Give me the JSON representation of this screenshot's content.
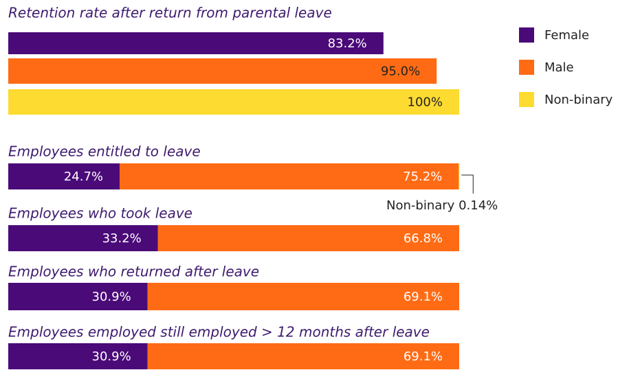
{
  "chart_data": [
    {
      "type": "bar",
      "title": "Retention rate after return from parental leave",
      "categories": [
        null
      ],
      "xlim": [
        0,
        100
      ],
      "legend": "right",
      "series": [
        {
          "name": "Female",
          "color": "#4a0a78",
          "label_color": "#ffffff",
          "values": [
            83.2
          ],
          "value_labels": [
            "83.2%"
          ]
        },
        {
          "name": "Male",
          "color": "#ff6b14",
          "label_color": "#222222",
          "values": [
            95.0
          ],
          "value_labels": [
            "95.0%"
          ]
        },
        {
          "name": "Non-binary",
          "color": "#fddb30",
          "label_color": "#222222",
          "values": [
            100
          ],
          "value_labels": [
            "100%"
          ]
        }
      ]
    },
    {
      "type": "stacked_bar",
      "title": "Employees entitled to leave",
      "categories": [
        null
      ],
      "xlim": [
        0,
        100
      ],
      "series": [
        {
          "name": "Female",
          "color": "#4a0a78",
          "label_color": "#ffffff",
          "values": [
            24.7
          ],
          "value_labels": [
            "24.7%"
          ]
        },
        {
          "name": "Male",
          "color": "#ff6b14",
          "label_color": "#ffffff",
          "values": [
            75.2
          ],
          "value_labels": [
            "75.2%"
          ]
        },
        {
          "name": "Non-binary",
          "color": "#fddb30",
          "label_color": "#222222",
          "values": [
            0.14
          ],
          "value_labels": [
            "0.14%"
          ],
          "callout": true
        }
      ]
    },
    {
      "type": "stacked_bar",
      "title": "Employees who took leave",
      "categories": [
        null
      ],
      "xlim": [
        0,
        100
      ],
      "series": [
        {
          "name": "Female",
          "color": "#4a0a78",
          "label_color": "#ffffff",
          "values": [
            33.2
          ],
          "value_labels": [
            "33.2%"
          ]
        },
        {
          "name": "Male",
          "color": "#ff6b14",
          "label_color": "#ffffff",
          "values": [
            66.8
          ],
          "value_labels": [
            "66.8%"
          ]
        }
      ]
    },
    {
      "type": "stacked_bar",
      "title": "Employees who returned after leave",
      "categories": [
        null
      ],
      "xlim": [
        0,
        100
      ],
      "series": [
        {
          "name": "Female",
          "color": "#4a0a78",
          "label_color": "#ffffff",
          "values": [
            30.9
          ],
          "value_labels": [
            "30.9%"
          ]
        },
        {
          "name": "Male",
          "color": "#ff6b14",
          "label_color": "#ffffff",
          "values": [
            69.1
          ],
          "value_labels": [
            "69.1%"
          ]
        }
      ]
    },
    {
      "type": "stacked_bar",
      "title": "Employees employed still employed > 12 months after leave",
      "categories": [
        null
      ],
      "xlim": [
        0,
        100
      ],
      "series": [
        {
          "name": "Female",
          "color": "#4a0a78",
          "label_color": "#ffffff",
          "values": [
            30.9
          ],
          "value_labels": [
            "30.9%"
          ]
        },
        {
          "name": "Male",
          "color": "#ff6b14",
          "label_color": "#ffffff",
          "values": [
            69.1
          ],
          "value_labels": [
            "69.1%"
          ]
        }
      ]
    }
  ]
}
